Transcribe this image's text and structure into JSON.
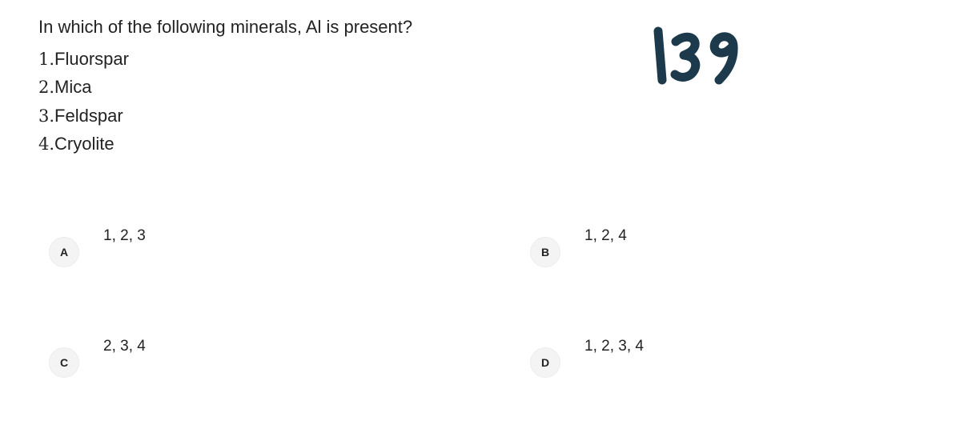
{
  "question": {
    "text": "In which of the following minerals, Al is present?",
    "statements": [
      {
        "num": "1.",
        "text": " Fluorspar"
      },
      {
        "num": "2.",
        "text": " Mica"
      },
      {
        "num": "3.",
        "text": " Feldspar"
      },
      {
        "num": "4.",
        "text": " Cryolite"
      }
    ]
  },
  "question_number": "139",
  "options": [
    {
      "letter": "A",
      "text": "1, 2, 3"
    },
    {
      "letter": "B",
      "text": "1, 2, 4"
    },
    {
      "letter": "C",
      "text": "2, 3, 4"
    },
    {
      "letter": "D",
      "text": "1, 2, 3, 4"
    }
  ],
  "colors": {
    "handwriting": "#1c3a4c",
    "badge_bg": "#f4f4f4"
  }
}
